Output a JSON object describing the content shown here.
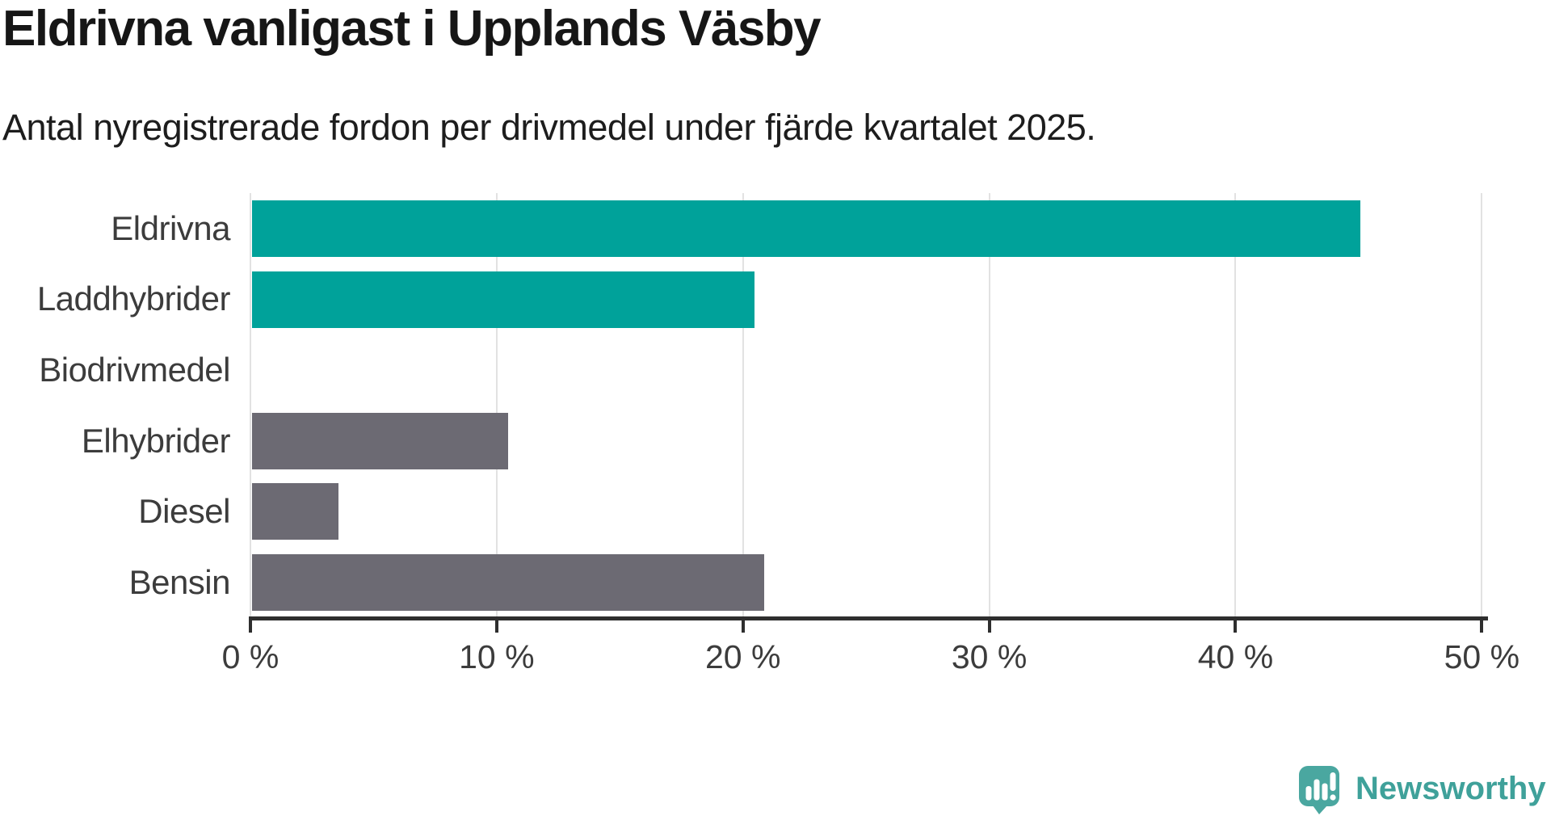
{
  "title": "Eldrivna vanligast i Upplands Väsby",
  "subtitle": "Antal nyregistrerade fordon per drivmedel under fjärde kvartalet 2025.",
  "colors": {
    "highlight": "#00a29a",
    "neutral": "#6c6a73",
    "axis": "#2e2e2e",
    "grid": "#e2e2e2",
    "label_text": "#3c3c3c",
    "title_text": "#161616"
  },
  "brand": {
    "name": "Newsworthy",
    "icon": "newsworthy-speech-bubble-chart-icon",
    "icon_color": "#4aa7a0",
    "text_color": "#3fa19a"
  },
  "chart_data": {
    "type": "bar",
    "orientation": "horizontal",
    "title": "Eldrivna vanligast i Upplands Väsby",
    "subtitle": "Antal nyregistrerade fordon per drivmedel under fjärde kvartalet 2025.",
    "categories": [
      "Eldrivna",
      "Laddhybrider",
      "Biodrivmedel",
      "Elhybrider",
      "Diesel",
      "Bensin"
    ],
    "values": [
      45.0,
      20.4,
      0,
      10.4,
      3.5,
      20.8
    ],
    "unit": "%",
    "bar_colors": [
      "#00a29a",
      "#00a29a",
      "#6c6a73",
      "#6c6a73",
      "#6c6a73",
      "#6c6a73"
    ],
    "x_ticks": [
      0,
      10,
      20,
      30,
      40,
      50
    ],
    "x_tick_suffix": " %",
    "xlim": [
      0,
      50
    ],
    "xlabel": "",
    "ylabel": "",
    "grid": true,
    "legend": "none"
  }
}
